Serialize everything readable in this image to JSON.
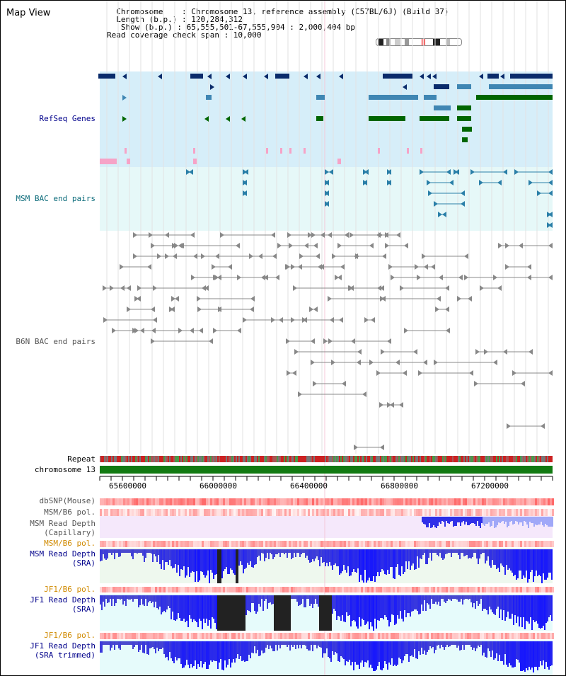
{
  "header": {
    "title": "Map View",
    "info_lines": [
      "  Chromosome    : Chromosome 13, reference assembly (C57BL/6J) (Build 37)",
      "  Length (b.p.) : 120,284,312",
      "   Show (b.p.) : 65,555,501-67,555,904 : 2,000,404 bp",
      "Read coverage check span : 10,000"
    ]
  },
  "tracks": {
    "refseq": "RefSeq Genes",
    "msm_bac": "MSM BAC end pairs",
    "b6n_bac": "B6N BAC end pairs",
    "repeat": "Repeat",
    "chromosome": "chromosome 13",
    "dbsnp": "dbSNP(Mouse)",
    "msm_pol1": "MSM/B6 pol.",
    "msm_cap": [
      "MSM Read Depth",
      "(Capillary)"
    ],
    "msm_pol2": "MSM/B6 pol.",
    "msm_sra": [
      "MSM Read Depth",
      "(SRA)"
    ],
    "jf1_pol1": "JF1/B6 pol.",
    "jf1_sra": [
      "JF1 Read Depth",
      "(SRA)"
    ],
    "jf1_pol2": "JF1/B6 pol.",
    "jf1_trim": [
      "JF1 Read Depth",
      "(SRA trimmed)"
    ]
  },
  "axis": {
    "ticks": [
      "65600000",
      "66000000",
      "66400000",
      "66800000",
      "67200000"
    ]
  },
  "colors": {
    "refseq_bg": "#d6eef9",
    "msm_bg": "#e6f8f8",
    "gene_navy": "#0a2b6b",
    "gene_steel": "#3f86b3",
    "gene_green": "#006600",
    "pink": "#f6a3c7",
    "label_navy": "#00008b",
    "label_teal": "#0b6b7a",
    "label_gray": "#555555",
    "label_orange": "#d08a00",
    "depth_blue": "#2424e0"
  }
}
